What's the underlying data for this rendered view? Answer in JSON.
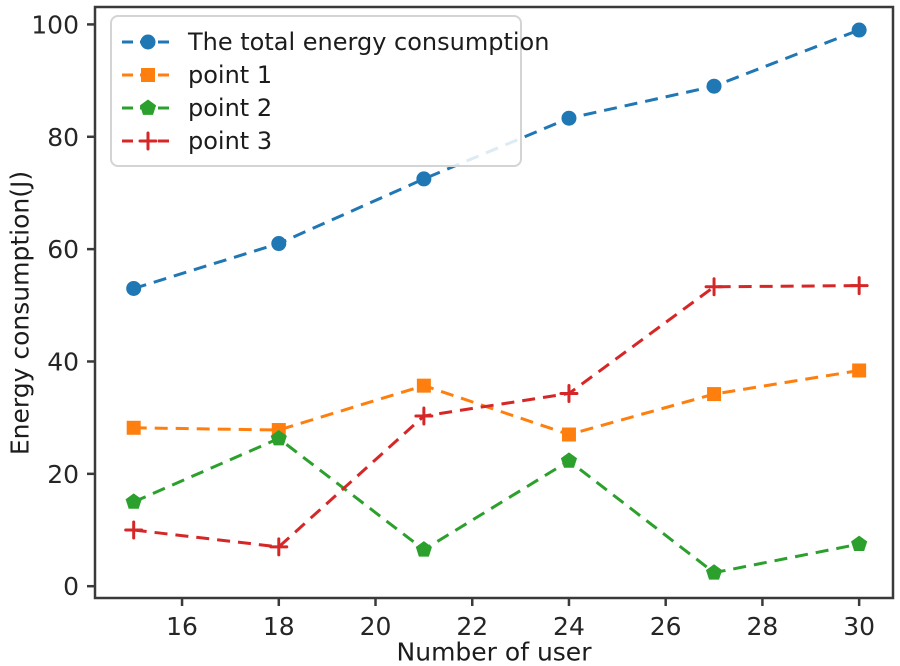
{
  "figure": {
    "background": "#ffffff",
    "frame_color": "#3a3a3a"
  },
  "chart_data": {
    "type": "line",
    "title": "",
    "xlabel": "Number of user",
    "ylabel": "Energy consumption(J)",
    "line_style": "dashed",
    "grid": false,
    "legend_position": "upper-left",
    "x": [
      15,
      18,
      21,
      24,
      27,
      30
    ],
    "xlim": [
      14.2,
      30.7
    ],
    "ylim": [
      -2.1,
      103.1
    ],
    "xticks": [
      "16",
      "18",
      "20",
      "22",
      "24",
      "26",
      "28",
      "30"
    ],
    "xtick_values": [
      16,
      18,
      20,
      22,
      24,
      26,
      28,
      30
    ],
    "yticks": [
      "0",
      "20",
      "40",
      "60",
      "80",
      "100"
    ],
    "ytick_values": [
      0,
      20,
      40,
      60,
      80,
      100
    ],
    "series": [
      {
        "name": "The total energy consumption",
        "marker": "circle",
        "color": "#1f77b4",
        "values": [
          53,
          61,
          72.5,
          83.3,
          89,
          99
        ]
      },
      {
        "name": "point 1",
        "marker": "square",
        "color": "#ff7f0e",
        "values": [
          28.2,
          27.8,
          35.7,
          27,
          34.2,
          38.4
        ]
      },
      {
        "name": "point 2",
        "marker": "pentagon",
        "color": "#2ca02c",
        "values": [
          15,
          26.3,
          6.5,
          22.3,
          2.4,
          7.5
        ]
      },
      {
        "name": "point 3",
        "marker": "plus",
        "color": "#d62728",
        "values": [
          10,
          7,
          30.3,
          34.3,
          53.3,
          53.5
        ]
      }
    ]
  }
}
